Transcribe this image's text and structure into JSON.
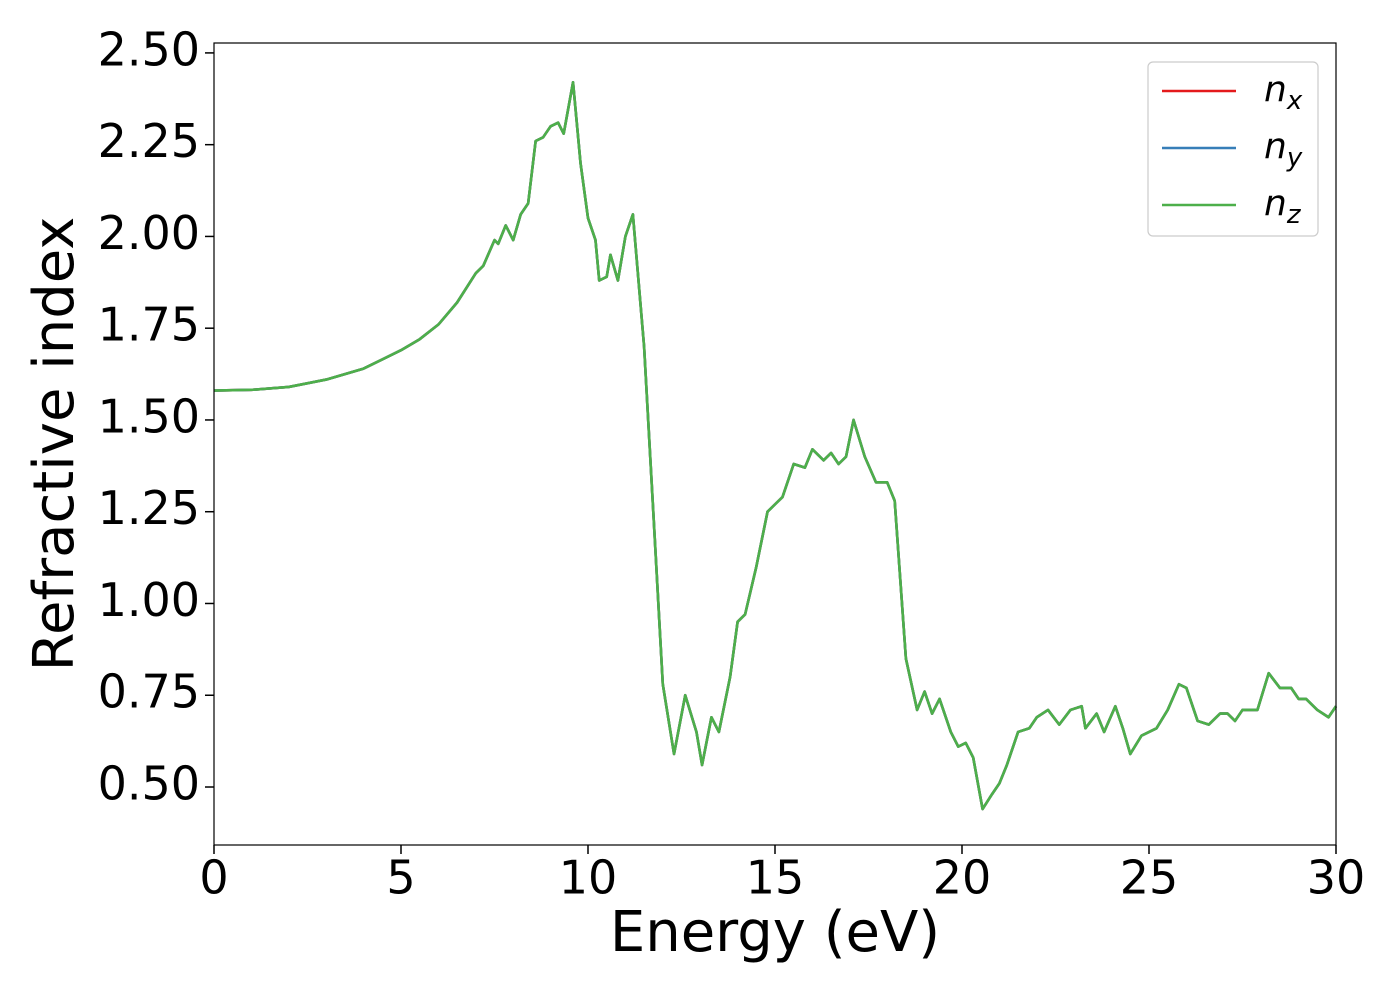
{
  "chart_data": {
    "type": "line",
    "xlabel": "Energy (eV)",
    "ylabel": "Refractive index",
    "x": [
      0,
      1,
      2,
      3,
      4,
      5,
      5.5,
      6,
      6.5,
      7,
      7.2,
      7.5,
      7.6,
      7.8,
      8.0,
      8.2,
      8.4,
      8.6,
      8.8,
      9.0,
      9.2,
      9.35,
      9.6,
      9.8,
      10.0,
      10.2,
      10.3,
      10.5,
      10.6,
      10.8,
      11.0,
      11.2,
      11.5,
      11.8,
      12.0,
      12.3,
      12.6,
      12.9,
      13.05,
      13.3,
      13.5,
      13.8,
      14.0,
      14.2,
      14.5,
      14.8,
      15.0,
      15.2,
      15.5,
      15.8,
      16.0,
      16.3,
      16.5,
      16.7,
      16.9,
      17.1,
      17.4,
      17.7,
      18.0,
      18.2,
      18.5,
      18.8,
      19.0,
      19.2,
      19.4,
      19.7,
      19.9,
      20.1,
      20.3,
      20.55,
      20.8,
      21.0,
      21.2,
      21.5,
      21.8,
      22.0,
      22.3,
      22.6,
      22.9,
      23.2,
      23.3,
      23.6,
      23.8,
      24.1,
      24.3,
      24.5,
      24.8,
      25.2,
      25.5,
      25.8,
      26.0,
      26.3,
      26.6,
      26.9,
      27.1,
      27.3,
      27.5,
      27.9,
      28.2,
      28.5,
      28.8,
      29.0,
      29.2,
      29.5,
      29.8,
      30.0
    ],
    "series": [
      {
        "name": "nx",
        "color": "#e41a1c",
        "values": [
          1.58,
          1.582,
          1.59,
          1.61,
          1.64,
          1.69,
          1.72,
          1.76,
          1.82,
          1.9,
          1.92,
          1.99,
          1.98,
          2.03,
          1.99,
          2.06,
          2.09,
          2.26,
          2.27,
          2.3,
          2.31,
          2.28,
          2.42,
          2.2,
          2.05,
          1.99,
          1.88,
          1.89,
          1.95,
          1.88,
          2.0,
          2.06,
          1.7,
          1.15,
          0.78,
          0.59,
          0.75,
          0.65,
          0.56,
          0.69,
          0.65,
          0.8,
          0.95,
          0.97,
          1.1,
          1.25,
          1.27,
          1.29,
          1.38,
          1.37,
          1.42,
          1.39,
          1.41,
          1.38,
          1.4,
          1.5,
          1.4,
          1.33,
          1.33,
          1.28,
          0.85,
          0.71,
          0.76,
          0.7,
          0.74,
          0.65,
          0.61,
          0.62,
          0.58,
          0.44,
          0.48,
          0.51,
          0.56,
          0.65,
          0.66,
          0.69,
          0.71,
          0.67,
          0.71,
          0.72,
          0.66,
          0.7,
          0.65,
          0.72,
          0.66,
          0.59,
          0.64,
          0.66,
          0.71,
          0.78,
          0.77,
          0.68,
          0.67,
          0.7,
          0.7,
          0.68,
          0.71,
          0.71,
          0.81,
          0.77,
          0.77,
          0.74,
          0.74,
          0.71,
          0.69,
          0.72
        ]
      },
      {
        "name": "ny",
        "color": "#377eb8",
        "values": [
          1.58,
          1.582,
          1.59,
          1.61,
          1.64,
          1.69,
          1.72,
          1.76,
          1.82,
          1.9,
          1.92,
          1.99,
          1.98,
          2.03,
          1.99,
          2.06,
          2.09,
          2.26,
          2.27,
          2.3,
          2.31,
          2.28,
          2.42,
          2.2,
          2.05,
          1.99,
          1.88,
          1.89,
          1.95,
          1.88,
          2.0,
          2.06,
          1.7,
          1.15,
          0.78,
          0.59,
          0.75,
          0.65,
          0.56,
          0.69,
          0.65,
          0.8,
          0.95,
          0.97,
          1.1,
          1.25,
          1.27,
          1.29,
          1.38,
          1.37,
          1.42,
          1.39,
          1.41,
          1.38,
          1.4,
          1.5,
          1.4,
          1.33,
          1.33,
          1.28,
          0.85,
          0.71,
          0.76,
          0.7,
          0.74,
          0.65,
          0.61,
          0.62,
          0.58,
          0.44,
          0.48,
          0.51,
          0.56,
          0.65,
          0.66,
          0.69,
          0.71,
          0.67,
          0.71,
          0.72,
          0.66,
          0.7,
          0.65,
          0.72,
          0.66,
          0.59,
          0.64,
          0.66,
          0.71,
          0.78,
          0.77,
          0.68,
          0.67,
          0.7,
          0.7,
          0.68,
          0.71,
          0.71,
          0.81,
          0.77,
          0.77,
          0.74,
          0.74,
          0.71,
          0.69,
          0.72
        ]
      },
      {
        "name": "nz",
        "color": "#4daf4a",
        "values": [
          1.58,
          1.582,
          1.59,
          1.61,
          1.64,
          1.69,
          1.72,
          1.76,
          1.82,
          1.9,
          1.92,
          1.99,
          1.98,
          2.03,
          1.99,
          2.06,
          2.09,
          2.26,
          2.27,
          2.3,
          2.31,
          2.28,
          2.42,
          2.2,
          2.05,
          1.99,
          1.88,
          1.89,
          1.95,
          1.88,
          2.0,
          2.06,
          1.7,
          1.15,
          0.78,
          0.59,
          0.75,
          0.65,
          0.56,
          0.69,
          0.65,
          0.8,
          0.95,
          0.97,
          1.1,
          1.25,
          1.27,
          1.29,
          1.38,
          1.37,
          1.42,
          1.39,
          1.41,
          1.38,
          1.4,
          1.5,
          1.4,
          1.33,
          1.33,
          1.28,
          0.85,
          0.71,
          0.76,
          0.7,
          0.74,
          0.65,
          0.61,
          0.62,
          0.58,
          0.44,
          0.48,
          0.51,
          0.56,
          0.65,
          0.66,
          0.69,
          0.71,
          0.67,
          0.71,
          0.72,
          0.66,
          0.7,
          0.65,
          0.72,
          0.66,
          0.59,
          0.64,
          0.66,
          0.71,
          0.78,
          0.77,
          0.68,
          0.67,
          0.7,
          0.7,
          0.68,
          0.71,
          0.71,
          0.81,
          0.77,
          0.77,
          0.74,
          0.74,
          0.71,
          0.69,
          0.72
        ]
      }
    ],
    "xlim": [
      0,
      30
    ],
    "xticks": [
      0,
      5,
      10,
      15,
      20,
      25,
      30
    ],
    "ylim": [
      0.342,
      2.527
    ],
    "yticks": [
      {
        "value": 0.5,
        "label": "0.50"
      },
      {
        "value": 0.75,
        "label": "0.75"
      },
      {
        "value": 1.0,
        "label": "1.00"
      },
      {
        "value": 1.25,
        "label": "1.25"
      },
      {
        "value": 1.5,
        "label": "1.50"
      },
      {
        "value": 1.75,
        "label": "1.75"
      },
      {
        "value": 2.0,
        "label": "2.00"
      },
      {
        "value": 2.25,
        "label": "2.25"
      },
      {
        "value": 2.5,
        "label": "2.50"
      }
    ],
    "legend": "upper right",
    "grid": false
  }
}
